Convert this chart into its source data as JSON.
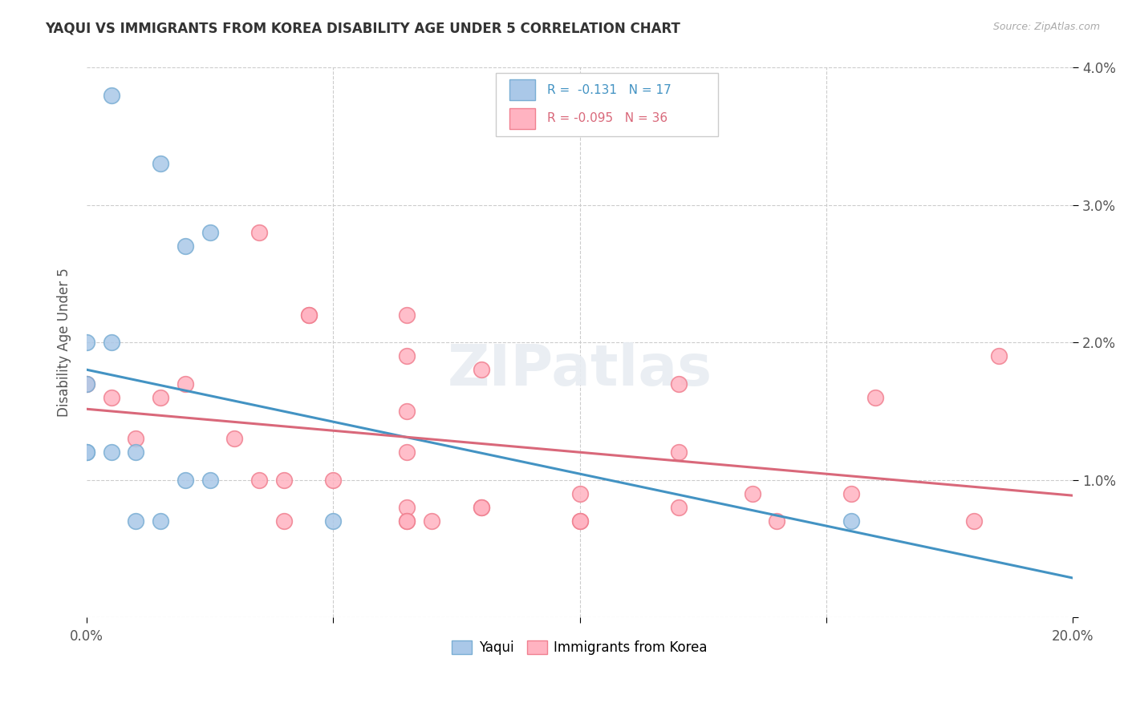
{
  "title": "YAQUI VS IMMIGRANTS FROM KOREA DISABILITY AGE UNDER 5 CORRELATION CHART",
  "source": "Source: ZipAtlas.com",
  "ylabel": "Disability Age Under 5",
  "xlim": [
    0.0,
    0.2
  ],
  "ylim": [
    0.0,
    0.04
  ],
  "bg_color": "#ffffff",
  "grid_color": "#cccccc",
  "blue_scatter_face": "#aac8e8",
  "blue_scatter_edge": "#7aaed4",
  "pink_scatter_face": "#ffb3c1",
  "pink_scatter_edge": "#f08090",
  "line_blue": "#4393c3",
  "line_pink": "#d9687a",
  "yaqui_x": [
    0.005,
    0.015,
    0.025,
    0.02,
    0.0,
    0.005,
    0.0,
    0.0,
    0.005,
    0.01,
    0.015,
    0.02,
    0.025,
    0.05,
    0.0,
    0.01,
    0.155
  ],
  "yaqui_y": [
    0.038,
    0.033,
    0.028,
    0.027,
    0.02,
    0.02,
    0.017,
    0.012,
    0.012,
    0.012,
    0.007,
    0.01,
    0.01,
    0.007,
    0.012,
    0.007,
    0.007
  ],
  "korea_x": [
    0.035,
    0.045,
    0.045,
    0.065,
    0.065,
    0.08,
    0.065,
    0.07,
    0.02,
    0.03,
    0.035,
    0.04,
    0.04,
    0.05,
    0.065,
    0.065,
    0.065,
    0.08,
    0.08,
    0.1,
    0.1,
    0.1,
    0.12,
    0.12,
    0.135,
    0.14,
    0.16,
    0.155,
    0.18,
    0.185,
    0.0,
    0.005,
    0.01,
    0.015,
    0.065,
    0.12
  ],
  "korea_y": [
    0.028,
    0.022,
    0.022,
    0.019,
    0.012,
    0.018,
    0.015,
    0.007,
    0.017,
    0.013,
    0.01,
    0.01,
    0.007,
    0.01,
    0.008,
    0.007,
    0.007,
    0.008,
    0.008,
    0.009,
    0.007,
    0.007,
    0.017,
    0.008,
    0.009,
    0.007,
    0.016,
    0.009,
    0.007,
    0.019,
    0.017,
    0.016,
    0.013,
    0.016,
    0.022,
    0.012
  ]
}
